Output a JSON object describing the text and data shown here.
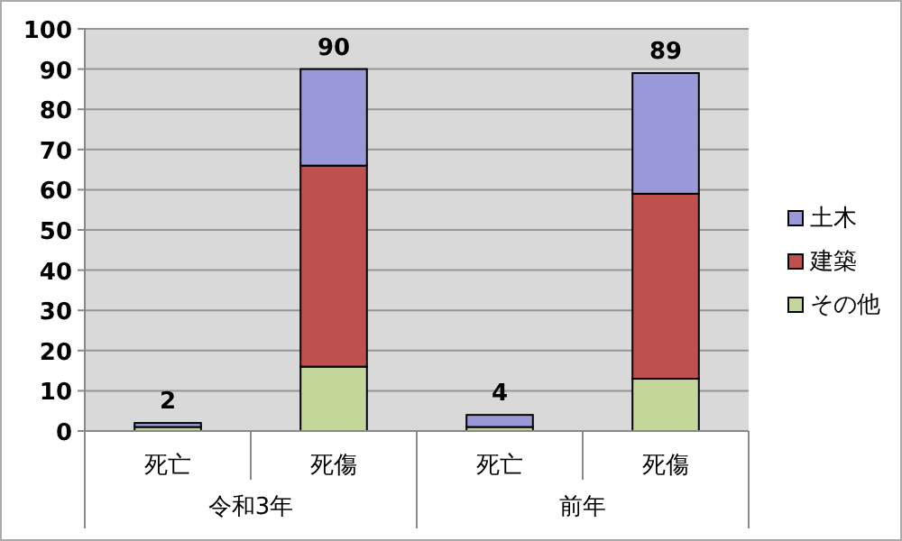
{
  "chart_data": {
    "type": "bar",
    "stacked": true,
    "categories": [
      "死亡",
      "死傷",
      "死亡",
      "死傷"
    ],
    "series": [
      {
        "name": "その他",
        "color": "#c4d79b",
        "values": [
          1,
          16,
          1,
          13
        ]
      },
      {
        "name": "建築",
        "color": "#c0504d",
        "values": [
          0,
          50,
          0,
          46
        ]
      },
      {
        "name": "土木",
        "color": "#9999d9",
        "values": [
          1,
          24,
          3,
          30
        ]
      }
    ],
    "totals": [
      "2",
      "90",
      "4",
      "89"
    ],
    "annotations": [
      "令和3年",
      "前年"
    ],
    "ylim": [
      0,
      100
    ],
    "yticks": [
      0,
      10,
      20,
      30,
      40,
      50,
      60,
      70,
      80,
      90,
      100
    ],
    "grid": "y",
    "legend": "right"
  }
}
